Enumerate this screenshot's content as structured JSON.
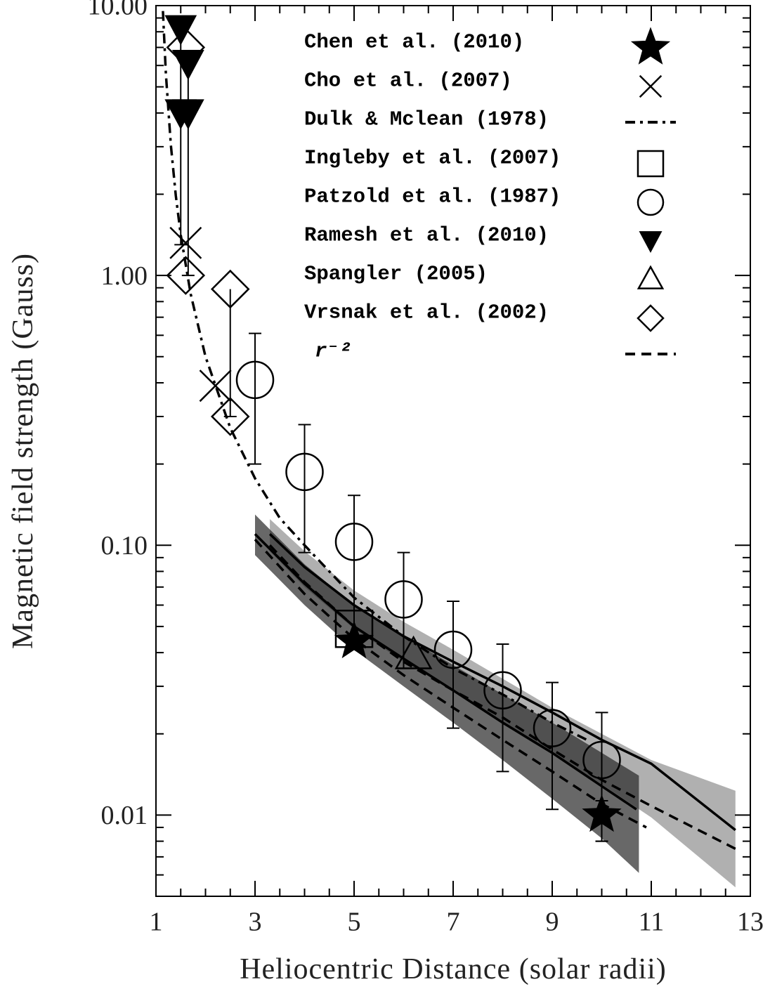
{
  "chart_data": {
    "type": "scatter",
    "x_label": "Heliocentric Distance (solar radii)",
    "y_label": "Magnetic field strength (Gauss)",
    "xlim": [
      1,
      13
    ],
    "xticks": [
      1,
      3,
      5,
      7,
      9,
      11,
      13
    ],
    "xminor_ticks": [
      1.5,
      2,
      2.5,
      3.5,
      4,
      4.5,
      5.5,
      6,
      6.5,
      7.5,
      8,
      8.5,
      9.5,
      10,
      10.5,
      11.5,
      12,
      12.5
    ],
    "ylim": [
      0.005,
      10
    ],
    "y_scale": "log",
    "yticks": [
      {
        "value": 10,
        "label": "10.00"
      },
      {
        "value": 1,
        "label": "1.00"
      },
      {
        "value": 0.1,
        "label": "0.10"
      },
      {
        "value": 0.01,
        "label": "0.01"
      }
    ],
    "yminor_ticks": [
      0.006,
      0.007,
      0.008,
      0.009,
      0.02,
      0.03,
      0.04,
      0.05,
      0.06,
      0.07,
      0.08,
      0.09,
      0.2,
      0.3,
      0.4,
      0.5,
      0.6,
      0.7,
      0.8,
      0.9,
      2,
      3,
      4,
      5,
      6,
      7,
      8,
      9
    ],
    "series": [
      {
        "name": "Chen et al. (2010)",
        "type": "scatter",
        "marker": "star",
        "filled": true,
        "color": "#000000",
        "x": [
          5,
          10
        ],
        "values": [
          0.044,
          0.01
        ],
        "error_low": [
          null,
          0.008
        ],
        "error_high": [
          null,
          0.0113
        ]
      },
      {
        "name": "Cho et al. (2007)",
        "type": "scatter",
        "marker": "x",
        "filled": false,
        "color": "#000000",
        "x": [
          1.6,
          2.2
        ],
        "values": [
          1.32,
          0.39
        ]
      },
      {
        "name": "Dulk & Mclean (1978)",
        "type": "line",
        "dash": "dashdot",
        "color": "#000000",
        "x": [
          1.14,
          1.2,
          1.3,
          1.4,
          1.5,
          1.7,
          2,
          2.5,
          3,
          3.5,
          4,
          5,
          6,
          7,
          8,
          9,
          9.7
        ],
        "values": [
          9.55,
          5.59,
          3.04,
          1.98,
          1.41,
          0.854,
          0.5,
          0.272,
          0.177,
          0.126,
          0.1,
          0.064,
          0.046,
          0.035,
          0.028,
          0.022,
          0.019
        ]
      },
      {
        "name": "Ingleby et al. (2007)",
        "type": "scatter",
        "marker": "square",
        "filled": false,
        "color": "#000000",
        "x": [
          5
        ],
        "values": [
          0.049
        ]
      },
      {
        "name": "Patzold et al. (1987)",
        "type": "scatter",
        "marker": "circle",
        "filled": false,
        "color": "#000000",
        "x": [
          3,
          4,
          5,
          6,
          7,
          8,
          9,
          10
        ],
        "values": [
          0.41,
          0.187,
          0.103,
          0.063,
          0.041,
          0.029,
          0.021,
          0.016
        ],
        "error_low": [
          0.2,
          0.094,
          0.045,
          0.035,
          0.021,
          0.0145,
          0.0105,
          0.008
        ],
        "error_high": [
          0.61,
          0.28,
          0.153,
          0.094,
          0.062,
          0.043,
          0.031,
          0.024
        ]
      },
      {
        "name": "Ramesh et al. (2010)",
        "type": "scatter",
        "marker": "triangle-down",
        "filled": true,
        "color": "#000000",
        "x": [
          1.5,
          1.65,
          1.5,
          1.65
        ],
        "values": [
          8.2,
          6.1,
          4.0,
          4.0
        ],
        "error_low": [
          1.3,
          1.0,
          null,
          null
        ],
        "error_high": [
          null,
          null,
          null,
          null
        ]
      },
      {
        "name": "Spangler (2005)",
        "type": "scatter",
        "marker": "triangle-up",
        "filled": false,
        "color": "#000000",
        "x": [
          6.2
        ],
        "values": [
          0.039
        ]
      },
      {
        "name": "Vrsnak et al. (2002)",
        "type": "scatter",
        "marker": "diamond",
        "filled": false,
        "color": "#000000",
        "x": [
          1.6,
          1.6,
          2.5,
          2.5
        ],
        "values": [
          7.0,
          1.0,
          0.89,
          0.3
        ],
        "error_low": [
          null,
          null,
          0.3,
          null
        ],
        "error_high": [
          null,
          null,
          null,
          null
        ]
      },
      {
        "name": "r⁻²",
        "type": "line",
        "dash": "dash",
        "color": "#000000",
        "x": [
          3.3,
          4,
          5,
          6,
          7,
          8,
          9,
          10,
          11,
          12.7
        ],
        "values": [
          0.1,
          0.073,
          0.05,
          0.037,
          0.029,
          0.023,
          0.0175,
          0.0135,
          0.0108,
          0.0075
        ]
      },
      {
        "type": "line",
        "dash": "dash",
        "color": "#000000",
        "x": [
          3,
          4,
          5,
          6,
          7,
          8,
          9,
          10,
          10.9
        ],
        "values": [
          0.105,
          0.066,
          0.045,
          0.033,
          0.025,
          0.019,
          0.0145,
          0.011,
          0.009
        ]
      },
      {
        "type": "line",
        "dash": "solid",
        "color": "#000000",
        "x": [
          3,
          4,
          5,
          6,
          7,
          8,
          9,
          10,
          10.7
        ],
        "values": [
          0.11,
          0.072,
          0.05,
          0.038,
          0.029,
          0.022,
          0.017,
          0.0128,
          0.0105
        ]
      },
      {
        "type": "line",
        "dash": "solid",
        "color": "#000000",
        "x": [
          3.3,
          4,
          5,
          6,
          7,
          8,
          9,
          10,
          11,
          12.7
        ],
        "values": [
          0.11,
          0.083,
          0.06,
          0.046,
          0.037,
          0.03,
          0.024,
          0.019,
          0.0155,
          0.0088
        ]
      },
      {
        "type": "band",
        "color": "rgba(150,150,150,0.75)",
        "x": [
          3.3,
          4,
          5,
          6,
          7,
          8,
          9,
          10,
          11,
          12.7
        ],
        "values": [
          0.125,
          0.095,
          0.068,
          0.052,
          0.041,
          0.032,
          0.025,
          0.02,
          0.016,
          0.0123
        ],
        "values_low": [
          0.095,
          0.07,
          0.049,
          0.037,
          0.029,
          0.022,
          0.017,
          0.013,
          0.0098,
          0.0054
        ]
      },
      {
        "type": "band",
        "color": "rgba(40,40,40,0.7)",
        "x": [
          3,
          4,
          5,
          6,
          7,
          8,
          9,
          10,
          10.75
        ],
        "values": [
          0.13,
          0.085,
          0.06,
          0.046,
          0.036,
          0.028,
          0.022,
          0.017,
          0.014
        ],
        "values_low": [
          0.092,
          0.06,
          0.041,
          0.03,
          0.022,
          0.016,
          0.0115,
          0.0082,
          0.0061
        ]
      }
    ]
  }
}
